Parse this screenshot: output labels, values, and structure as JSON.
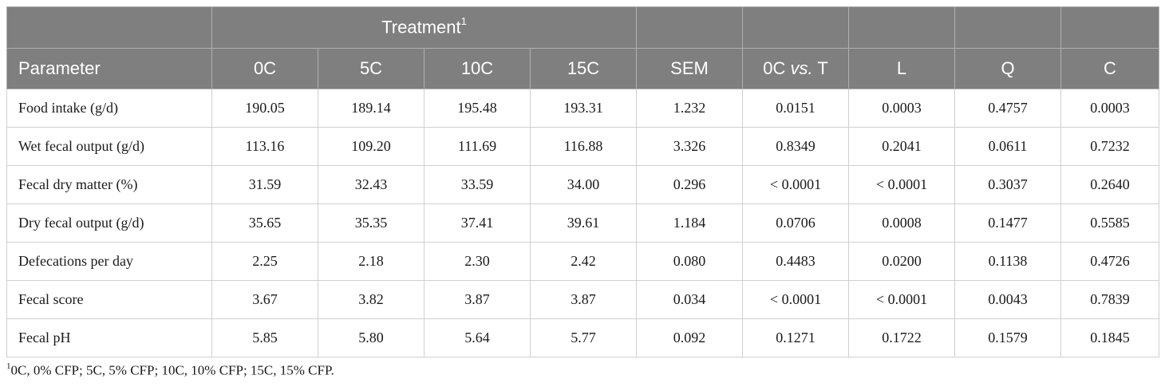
{
  "table": {
    "group_header": {
      "label": "Treatment",
      "sup": "1"
    },
    "columns": {
      "parameter": "Parameter",
      "c0": "0C",
      "c5": "5C",
      "c10": "10C",
      "c15": "15C",
      "sem": "SEM",
      "vs_pre": "0C ",
      "vs_italic": "vs.",
      "vs_post": " T",
      "l": "L",
      "q": "Q",
      "c": "C"
    },
    "rows": [
      {
        "parameter": "Food intake (g/d)",
        "c0": "190.05",
        "c5": "189.14",
        "c10": "195.48",
        "c15": "193.31",
        "sem": "1.232",
        "vs": "0.0151",
        "l": "0.0003",
        "q": "0.4757",
        "c": "0.0003"
      },
      {
        "parameter": "Wet fecal output (g/d)",
        "c0": "113.16",
        "c5": "109.20",
        "c10": "111.69",
        "c15": "116.88",
        "sem": "3.326",
        "vs": "0.8349",
        "l": "0.2041",
        "q": "0.0611",
        "c": "0.7232"
      },
      {
        "parameter": "Fecal dry matter (%)",
        "c0": "31.59",
        "c5": "32.43",
        "c10": "33.59",
        "c15": "34.00",
        "sem": "0.296",
        "vs": "< 0.0001",
        "l": "< 0.0001",
        "q": "0.3037",
        "c": "0.2640"
      },
      {
        "parameter": "Dry fecal output (g/d)",
        "c0": "35.65",
        "c5": "35.35",
        "c10": "37.41",
        "c15": "39.61",
        "sem": "1.184",
        "vs": "0.0706",
        "l": "0.0008",
        "q": "0.1477",
        "c": "0.5585"
      },
      {
        "parameter": "Defecations per day",
        "c0": "2.25",
        "c5": "2.18",
        "c10": "2.30",
        "c15": "2.42",
        "sem": "0.080",
        "vs": "0.4483",
        "l": "0.0200",
        "q": "0.1138",
        "c": "0.4726"
      },
      {
        "parameter": "Fecal score",
        "c0": "3.67",
        "c5": "3.82",
        "c10": "3.87",
        "c15": "3.87",
        "sem": "0.034",
        "vs": "< 0.0001",
        "l": "< 0.0001",
        "q": "0.0043",
        "c": "0.7839"
      },
      {
        "parameter": "Fecal pH",
        "c0": "5.85",
        "c5": "5.80",
        "c10": "5.64",
        "c15": "5.77",
        "sem": "0.092",
        "vs": "0.1271",
        "l": "0.1722",
        "q": "0.1579",
        "c": "0.1845"
      }
    ]
  },
  "footnote": {
    "sup": "1",
    "text": "0C, 0% CFP; 5C, 5% CFP; 10C, 10% CFP; 15C, 15% CFP."
  }
}
